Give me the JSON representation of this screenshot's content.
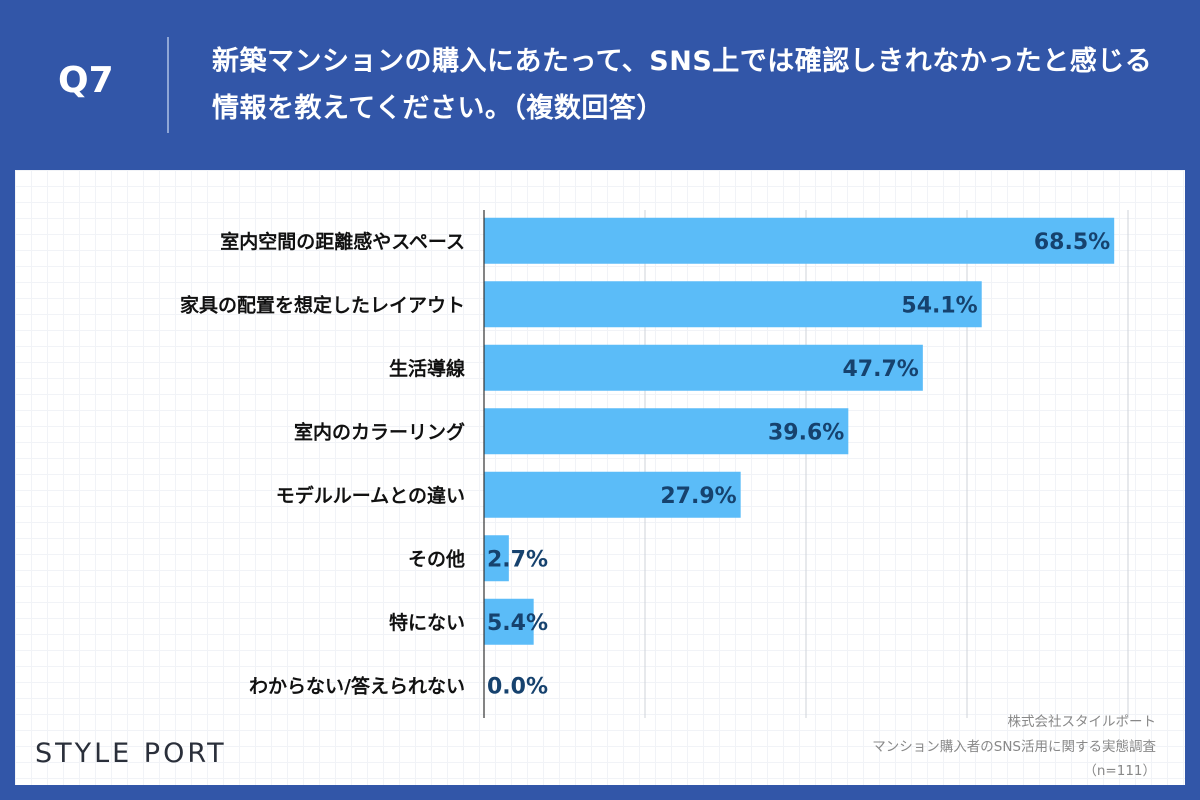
{
  "header": {
    "question": "Q7",
    "title": "新築マンションの購入にあたって、SNS上では確認しきれなかったと感じる情報を教えてください。（複数回答）"
  },
  "chart_data": {
    "type": "bar",
    "orientation": "horizontal",
    "categories": [
      "室内空間の距離感やスペース",
      "家具の配置を想定したレイアウト",
      "生活導線",
      "室内のカラーリング",
      "モデルルームとの違い",
      "その他",
      "特にない",
      "わからない/答えられない"
    ],
    "values": [
      68.5,
      54.1,
      47.7,
      39.6,
      27.9,
      2.7,
      5.4,
      0.0
    ],
    "value_labels": [
      "68.5%",
      "54.1%",
      "47.7%",
      "39.6%",
      "27.9%",
      "2.7%",
      "5.4%",
      "0.0%"
    ],
    "xlim": [
      0,
      70
    ],
    "grid": true,
    "bar_color": "#5bbcf8"
  },
  "footer": {
    "logo": "STYLE PORT",
    "source_company": "株式会社スタイルポート",
    "source_survey": "マンション購入者のSNS活用に関する実態調査",
    "sample": "（n=111）"
  }
}
